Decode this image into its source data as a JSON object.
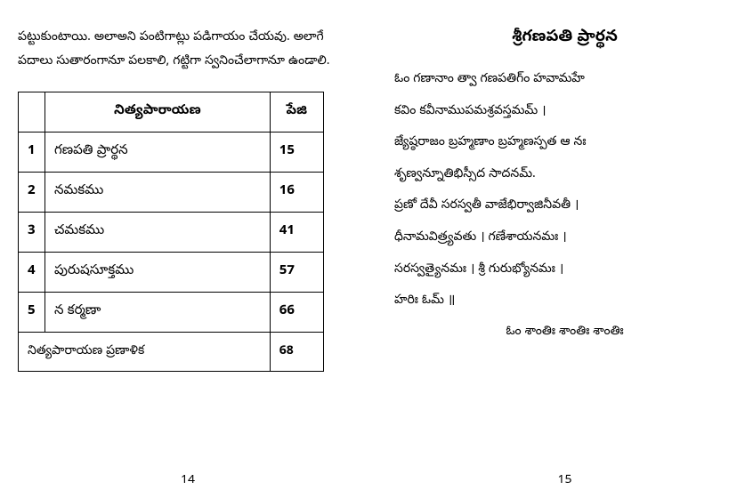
{
  "leftPage": {
    "introText": "పట్టుకుంటాయి. అలాఅని పంటిగాట్లు పడిగాయం చేయవు. అలాగే పదాలు సుతారంగానూ పలకాలి, గట్టిగా స్వనించేలాగానూ ఉండాలి.",
    "table": {
      "headers": {
        "col2": "నిత్యపారాయణ",
        "col3": "పేజి"
      },
      "rows": [
        {
          "num": "1",
          "title": "గణపతి ప్రార్థన",
          "page": "15"
        },
        {
          "num": "2",
          "title": "నమకము",
          "page": "16"
        },
        {
          "num": "3",
          "title": "చమకము",
          "page": "41"
        },
        {
          "num": "4",
          "title": "పురుషసూక్తము",
          "page": "57"
        },
        {
          "num": "5",
          "title": "న కర్మణా",
          "page": "66"
        }
      ],
      "footer": {
        "title": "నిత్యపారాయణ ప్రణాళిక",
        "page": "68"
      }
    },
    "pageNumber": "14"
  },
  "rightPage": {
    "title": "శ్రీగణపతి ప్రార్థన",
    "lines": [
      "ఓం గణానాం త్వా గణపతిగ్ం హవామహే",
      "కవిం కవీనాముపమశ్రవస్తమమ్ ।",
      "జ్యేష్ఠరాజం బ్రహ్మణాం బ్రహ్మణస్పత ఆ నః",
      "శృణ్వన్నూతిభిస్సీద సాదనమ్.",
      "ప్రణో దేవీ సరస్వతీ వాజేభిర్వాజినీవతీ ।",
      "ధీనామవిత్ర్యవతు । గణేశాయనమః ।",
      "సరస్వత్యైనమః । శ్రీ గురుభ్యోనమః ।",
      "హరిః ఓమ్ ॥"
    ],
    "closing": "ఓం శాంతిః శాంతిః శాంతిః",
    "pageNumber": "15"
  },
  "styling": {
    "pageWidth": 846,
    "pageHeight": 560,
    "backgroundColor": "#ffffff",
    "textColor": "#000000",
    "borderColor": "#000000",
    "bodyFontSize": 14,
    "titleFontSize": 18,
    "lineHeight": 2.4
  }
}
